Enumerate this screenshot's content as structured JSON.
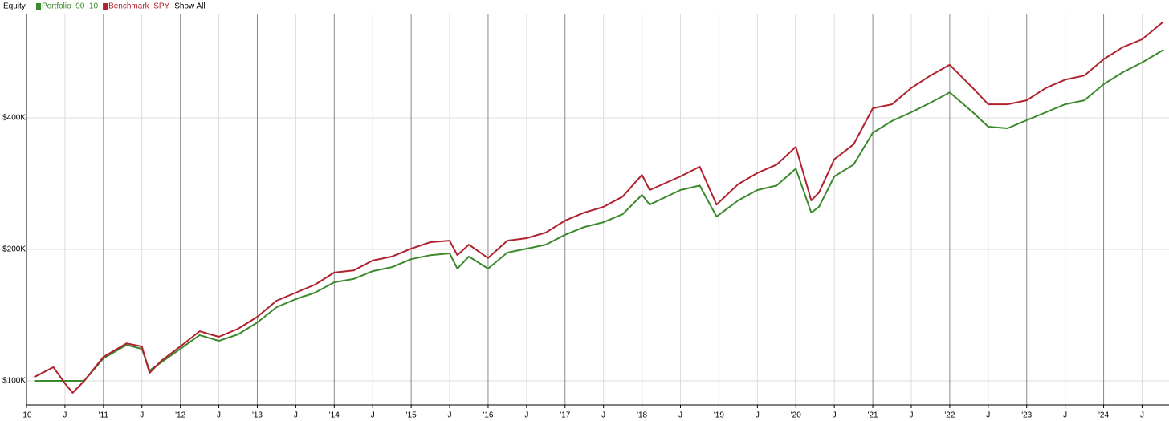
{
  "chart_data": {
    "type": "line",
    "legend_title": "Equity",
    "legend_action": "Show All",
    "log_y": true,
    "grid": true,
    "xlim": [
      2010,
      2024.85
    ],
    "ylim": [
      88100,
      690000
    ],
    "yticks": [
      {
        "value": 100000,
        "label": "$100K"
      },
      {
        "value": 200000,
        "label": "$200K"
      },
      {
        "value": 400000,
        "label": "$400K"
      }
    ],
    "xticks": [
      {
        "value": 2010,
        "label": "'10"
      },
      {
        "value": 2010.5,
        "label": "J"
      },
      {
        "value": 2011,
        "label": "'11"
      },
      {
        "value": 2011.5,
        "label": "J"
      },
      {
        "value": 2012,
        "label": "'12"
      },
      {
        "value": 2012.5,
        "label": "J"
      },
      {
        "value": 2013,
        "label": "'13"
      },
      {
        "value": 2013.5,
        "label": "J"
      },
      {
        "value": 2014,
        "label": "'14"
      },
      {
        "value": 2014.5,
        "label": "J"
      },
      {
        "value": 2015,
        "label": "'15"
      },
      {
        "value": 2015.5,
        "label": "J"
      },
      {
        "value": 2016,
        "label": "'16"
      },
      {
        "value": 2016.5,
        "label": "J"
      },
      {
        "value": 2017,
        "label": "'17"
      },
      {
        "value": 2017.5,
        "label": "J"
      },
      {
        "value": 2018,
        "label": "'18"
      },
      {
        "value": 2018.5,
        "label": "J"
      },
      {
        "value": 2019,
        "label": "'19"
      },
      {
        "value": 2019.5,
        "label": "J"
      },
      {
        "value": 2020,
        "label": "'20"
      },
      {
        "value": 2020.5,
        "label": "J"
      },
      {
        "value": 2021,
        "label": "'21"
      },
      {
        "value": 2021.5,
        "label": "J"
      },
      {
        "value": 2022,
        "label": "'22"
      },
      {
        "value": 2022.5,
        "label": "J"
      },
      {
        "value": 2023,
        "label": "'23"
      },
      {
        "value": 2023.5,
        "label": "J"
      },
      {
        "value": 2024,
        "label": "'24"
      },
      {
        "value": 2024.5,
        "label": "J"
      }
    ],
    "x": [
      2010.1,
      2010.35,
      2010.5,
      2010.6,
      2010.75,
      2011.0,
      2011.3,
      2011.5,
      2011.6,
      2011.75,
      2012.0,
      2012.25,
      2012.5,
      2012.75,
      2013.0,
      2013.25,
      2013.5,
      2013.75,
      2014.0,
      2014.25,
      2014.5,
      2014.75,
      2015.0,
      2015.25,
      2015.5,
      2015.6,
      2015.75,
      2016.0,
      2016.25,
      2016.5,
      2016.75,
      2017.0,
      2017.25,
      2017.5,
      2017.75,
      2018.0,
      2018.1,
      2018.5,
      2018.75,
      2018.97,
      2019.25,
      2019.5,
      2019.75,
      2020.0,
      2020.2,
      2020.3,
      2020.5,
      2020.75,
      2021.0,
      2021.25,
      2021.5,
      2021.75,
      2022.0,
      2022.3,
      2022.5,
      2022.75,
      2023.0,
      2023.25,
      2023.5,
      2023.75,
      2024.0,
      2024.25,
      2024.5,
      2024.78
    ],
    "series": [
      {
        "name": "Portfolio_90_10",
        "color": "#3d8a2e",
        "values": [
          100000,
          100000,
          100000,
          100000,
          100000,
          112600,
          120900,
          118400,
          105600,
          110200,
          118400,
          127300,
          123500,
          127800,
          136100,
          147500,
          153900,
          159200,
          168200,
          171100,
          178400,
          182200,
          190000,
          194000,
          195800,
          180700,
          192600,
          180700,
          196700,
          200800,
          205100,
          216000,
          225000,
          230800,
          240800,
          266600,
          253200,
          273400,
          280000,
          237800,
          258800,
          273400,
          280000,
          306000,
          242800,
          250200,
          293800,
          312600,
          370000,
          393400,
          412000,
          433200,
          457600,
          412000,
          381800,
          378600,
          395000,
          412000,
          429600,
          438800,
          477600,
          508800,
          535600,
          572800
        ]
      },
      {
        "name": "Benchmark_SPY",
        "color": "#b0222e",
        "values": [
          102000,
          107500,
          98700,
          93900,
          100000,
          113500,
          121900,
          119900,
          104300,
          111100,
          119900,
          129900,
          126200,
          131600,
          140200,
          152600,
          159200,
          166100,
          177000,
          179000,
          188600,
          192600,
          200800,
          207800,
          209400,
          194000,
          205100,
          191100,
          209400,
          212200,
          218600,
          232800,
          242800,
          250200,
          264200,
          296200,
          273400,
          293800,
          309200,
          253200,
          282000,
          299200,
          312600,
          343400,
          258800,
          269800,
          321600,
          347800,
          420800,
          429600,
          468400,
          500000,
          529200,
          468400,
          429600,
          429600,
          438800,
          468400,
          489200,
          500000,
          544800,
          580800,
          605200,
          664400
        ]
      }
    ]
  }
}
